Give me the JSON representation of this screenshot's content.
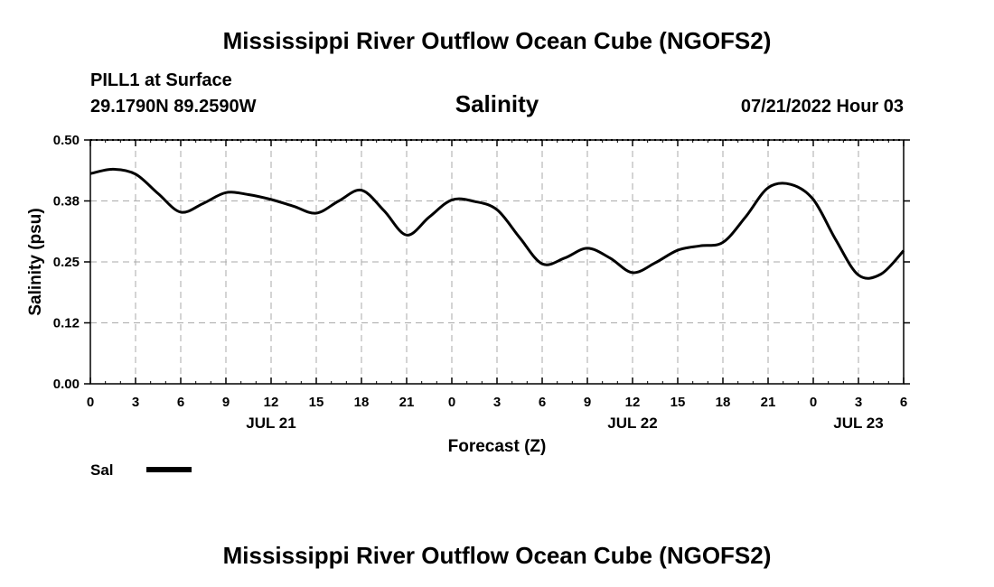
{
  "chart_data": {
    "type": "line",
    "title": "Mississippi River Outflow Ocean Cube (NGOFS2)",
    "station": "PILL1 at Surface",
    "location": "29.1790N  89.2590W",
    "variable": "Salinity",
    "run_time": "07/21/2022 Hour 03",
    "ylabel": "Salinity (psu)",
    "xlabel": "Forecast (Z)",
    "ylim": [
      0,
      0.5
    ],
    "xlim": [
      0,
      54
    ],
    "y_ticks": [
      0.0,
      0.125,
      0.25,
      0.375,
      0.5
    ],
    "y_tick_labels": [
      "0.00",
      "0.12",
      "0.25",
      "0.38",
      "0.50"
    ],
    "x_ticks": [
      0,
      3,
      6,
      9,
      12,
      15,
      18,
      21,
      24,
      27,
      30,
      33,
      36,
      39,
      42,
      45,
      48,
      51,
      54
    ],
    "x_tick_labels": [
      "0",
      "3",
      "6",
      "9",
      "12",
      "15",
      "18",
      "21",
      "0",
      "3",
      "6",
      "9",
      "12",
      "15",
      "18",
      "21",
      "0",
      "3",
      "6"
    ],
    "date_labels": [
      {
        "hour": 12,
        "label": "JUL 21"
      },
      {
        "hour": 36,
        "label": "JUL 22"
      },
      {
        "hour": 51,
        "label": "JUL 23"
      }
    ],
    "grid": true,
    "legend": {
      "position": "bottom-left",
      "entries": [
        {
          "name": "Sal",
          "color": "#000000"
        }
      ]
    },
    "series": [
      {
        "name": "Sal",
        "color": "#000000",
        "x": [
          0,
          1.5,
          3,
          4.5,
          6,
          7.5,
          9,
          10.5,
          12,
          13.5,
          15,
          16.5,
          18,
          19.5,
          21,
          22.5,
          24,
          25.5,
          27,
          28.5,
          30,
          31.5,
          33,
          34.5,
          36,
          37.5,
          39,
          40.5,
          42,
          43.5,
          45,
          46.5,
          48,
          49.5,
          51,
          52.5,
          54
        ],
        "values": [
          0.431,
          0.44,
          0.43,
          0.39,
          0.352,
          0.37,
          0.392,
          0.388,
          0.378,
          0.364,
          0.35,
          0.375,
          0.397,
          0.355,
          0.305,
          0.342,
          0.377,
          0.374,
          0.357,
          0.3,
          0.246,
          0.258,
          0.278,
          0.258,
          0.228,
          0.248,
          0.274,
          0.283,
          0.29,
          0.342,
          0.402,
          0.409,
          0.378,
          0.295,
          0.223,
          0.225,
          0.273
        ]
      }
    ]
  },
  "footer_title": "Mississippi River Outflow Ocean Cube (NGOFS2)"
}
